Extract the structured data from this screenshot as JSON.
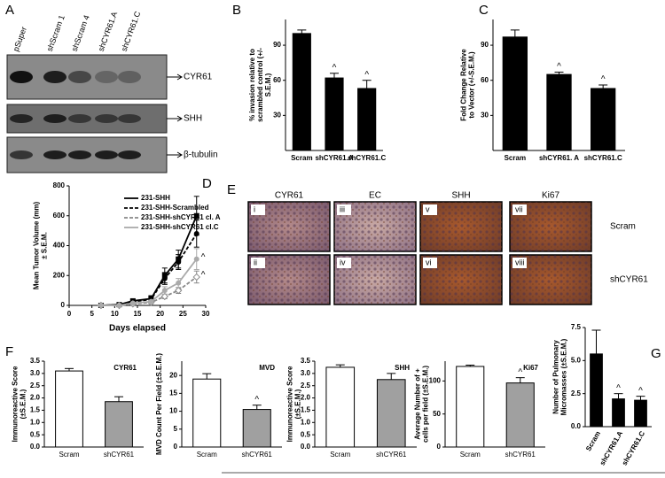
{
  "panel_letters": [
    "A",
    "B",
    "C",
    "D",
    "E",
    "F",
    "G"
  ],
  "blot": {
    "lanes": [
      "pSuper",
      "shScram 1",
      "shScram 4",
      "shCYR61.A",
      "shCYR61.C"
    ],
    "bands": [
      "CYR61",
      "SHH",
      "β-tubulin"
    ]
  },
  "ihc": {
    "columns": [
      "CYR61",
      "EC",
      "SHH",
      "Ki67"
    ],
    "rows": [
      "Scram",
      "shCYR61"
    ],
    "panels": [
      "i",
      "iii",
      "v",
      "vii",
      "ii",
      "iv",
      "vi",
      "viii"
    ]
  },
  "chart_data": [
    {
      "type": "bar",
      "ylabel": [
        "% invasion relative to",
        "scrambled control (+/-",
        "S.E.M.)"
      ],
      "categories": [
        "Scram",
        "shCYR61.A",
        "shCYR61.C"
      ],
      "values": [
        100,
        62,
        53
      ],
      "errors": [
        3,
        4,
        7
      ],
      "markers": [
        null,
        "^",
        "^"
      ],
      "colors": [
        "#000000",
        "#000000",
        "#000000"
      ],
      "ylim": [
        0,
        112
      ],
      "yticks": [
        30,
        60,
        90
      ]
    },
    {
      "type": "bar",
      "ylabel": [
        "Fold Change Relative",
        "to Vector (+/-S.E.M.)"
      ],
      "categories": [
        "Scram",
        "shCYR61. A",
        "shCYR61.C"
      ],
      "values": [
        97,
        65,
        53
      ],
      "errors": [
        6,
        2,
        3
      ],
      "markers": [
        null,
        "^",
        "^"
      ],
      "colors": [
        "#000000",
        "#000000",
        "#000000"
      ],
      "ylim": [
        0,
        112
      ],
      "yticks": [
        30,
        60,
        90
      ]
    },
    {
      "type": "line",
      "xlabel": "Days elapsed",
      "ylabel": [
        "Mean Tumor Volume (mm)",
        "± S.E.M."
      ],
      "x": [
        7,
        11,
        14,
        18,
        21,
        24,
        28
      ],
      "xlim": [
        0,
        30
      ],
      "xticks": [
        0,
        5,
        10,
        15,
        20,
        25,
        30
      ],
      "ylim": [
        0,
        800
      ],
      "yticks": [
        0,
        200,
        400,
        600,
        800
      ],
      "series": [
        {
          "name": "231-SHH",
          "color": "#000000",
          "dash": false,
          "marker": "square",
          "values": [
            0,
            5,
            30,
            45,
            200,
            310,
            600
          ],
          "errors": [
            0,
            3,
            10,
            20,
            50,
            60,
            130
          ]
        },
        {
          "name": "231-SHH-Scrambled",
          "color": "#000000",
          "dash": true,
          "marker": "circle",
          "values": [
            0,
            5,
            25,
            40,
            180,
            290,
            480
          ],
          "errors": [
            0,
            3,
            8,
            15,
            40,
            50,
            90
          ]
        },
        {
          "name": "231-SHH-shCYR61 cl. A",
          "color": "#888888",
          "dash": true,
          "marker": "diamond",
          "values": [
            0,
            0,
            10,
            20,
            60,
            100,
            190
          ],
          "errors": [
            0,
            2,
            5,
            8,
            15,
            20,
            40
          ]
        },
        {
          "name": "231-SHH-shCYR61 cl.C",
          "color": "#aaaaaa",
          "dash": false,
          "marker": "circle",
          "values": [
            0,
            0,
            15,
            25,
            100,
            150,
            310
          ],
          "errors": [
            0,
            2,
            6,
            10,
            25,
            30,
            70
          ]
        }
      ],
      "end_markers": [
        "^",
        "^"
      ]
    },
    {
      "type": "bar",
      "title": "CYR61",
      "ylabel": [
        "Immunoreactive Score",
        "(±S.E.M.)"
      ],
      "categories": [
        "Scram",
        "shCYR61"
      ],
      "values": [
        3.1,
        1.85
      ],
      "errors": [
        0.1,
        0.2
      ],
      "markers": [
        null,
        null
      ],
      "colors": [
        "#ffffff",
        "#a0a0a0"
      ],
      "ylim": [
        0,
        3.5
      ],
      "yticks": [
        {
          "value": 0,
          "label": "0.0"
        },
        0.5,
        {
          "value": 1,
          "label": "1.0"
        },
        1.5,
        {
          "value": 2,
          "label": "2.0"
        },
        2.5,
        {
          "value": 3,
          "label": "3.0"
        },
        3.5
      ]
    },
    {
      "type": "bar",
      "title": "MVD",
      "ylabel": [
        "MVD Count Per Field (±S.E.M.)"
      ],
      "categories": [
        "Scram",
        "shCYR61"
      ],
      "values": [
        19,
        10.5
      ],
      "errors": [
        1.5,
        1.2
      ],
      "markers": [
        null,
        "^"
      ],
      "colors": [
        "#ffffff",
        "#a0a0a0"
      ],
      "ylim": [
        0,
        24
      ],
      "yticks": [
        0,
        5,
        10,
        15,
        20
      ]
    },
    {
      "type": "bar",
      "title": "SHH",
      "ylabel": [
        "Immunoreactive Score",
        "(±S.E.M.)"
      ],
      "categories": [
        "Scram",
        "shCYR61"
      ],
      "values": [
        3.25,
        2.75
      ],
      "errors": [
        0.1,
        0.25
      ],
      "markers": [
        null,
        null
      ],
      "colors": [
        "#ffffff",
        "#a0a0a0"
      ],
      "ylim": [
        0,
        3.5
      ],
      "yticks": [
        {
          "value": 0,
          "label": "0.0"
        },
        0.5,
        {
          "value": 1,
          "label": "1.0"
        },
        1.5,
        {
          "value": 2,
          "label": "2.0"
        },
        2.5,
        {
          "value": 3,
          "label": "3.0"
        },
        3.5
      ]
    },
    {
      "type": "bar",
      "title": "Ki67",
      "ylabel": [
        "Average Number of +",
        "cells per field (±S.E.M.)"
      ],
      "categories": [
        "Scram",
        "shCYR61"
      ],
      "values": [
        122,
        97
      ],
      "errors": [
        2,
        8
      ],
      "markers": [
        null,
        "^"
      ],
      "colors": [
        "#ffffff",
        "#a0a0a0"
      ],
      "ylim": [
        0,
        130
      ],
      "yticks": [
        0,
        50,
        100
      ]
    },
    {
      "type": "bar",
      "ylabel": [
        "Number of Pulmonary",
        "Micromasses (±S.E.M.)"
      ],
      "categories": [
        "Scram",
        "shCYR61.A",
        "shCYR61.C"
      ],
      "values": [
        5.5,
        2.1,
        2.0
      ],
      "errors": [
        1.8,
        0.4,
        0.3
      ],
      "markers": [
        null,
        "^",
        "^"
      ],
      "colors": [
        "#000000",
        "#000000",
        "#000000"
      ],
      "ylim": [
        0,
        7.5
      ],
      "yticks": [
        {
          "value": 0,
          "label": "0.0"
        },
        2.5,
        {
          "value": 5,
          "label": "5.0"
        },
        7.5
      ]
    }
  ]
}
